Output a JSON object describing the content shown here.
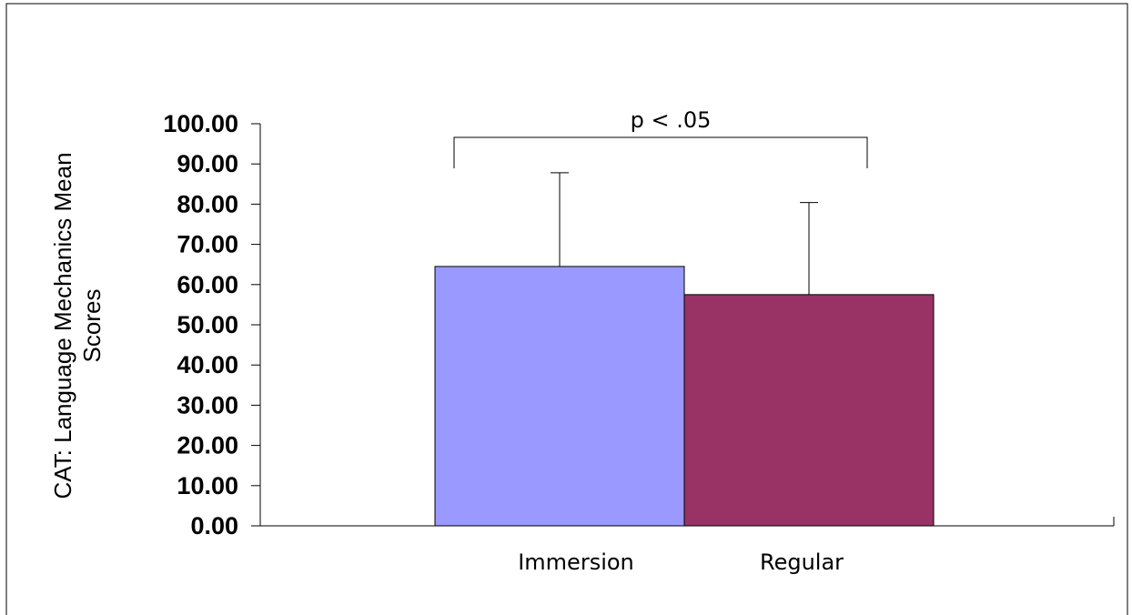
{
  "chart_data": {
    "type": "bar",
    "categories": [
      "Immersion",
      "Regular"
    ],
    "values": [
      64.5,
      57.5
    ],
    "error_upper": [
      87.8,
      80.4
    ],
    "colors": [
      "#9999ff",
      "#993366"
    ],
    "ylim": [
      0,
      100
    ],
    "yticks": [
      "0.00",
      "10.00",
      "20.00",
      "30.00",
      "40.00",
      "50.00",
      "60.00",
      "70.00",
      "80.00",
      "90.00",
      "100.00"
    ],
    "ylabel_lines": [
      "CAT: Language Mechanics Mean",
      "Scores"
    ],
    "xlabel": "",
    "title": "",
    "annotation": "p < .05",
    "grid": false,
    "legend": "none"
  }
}
